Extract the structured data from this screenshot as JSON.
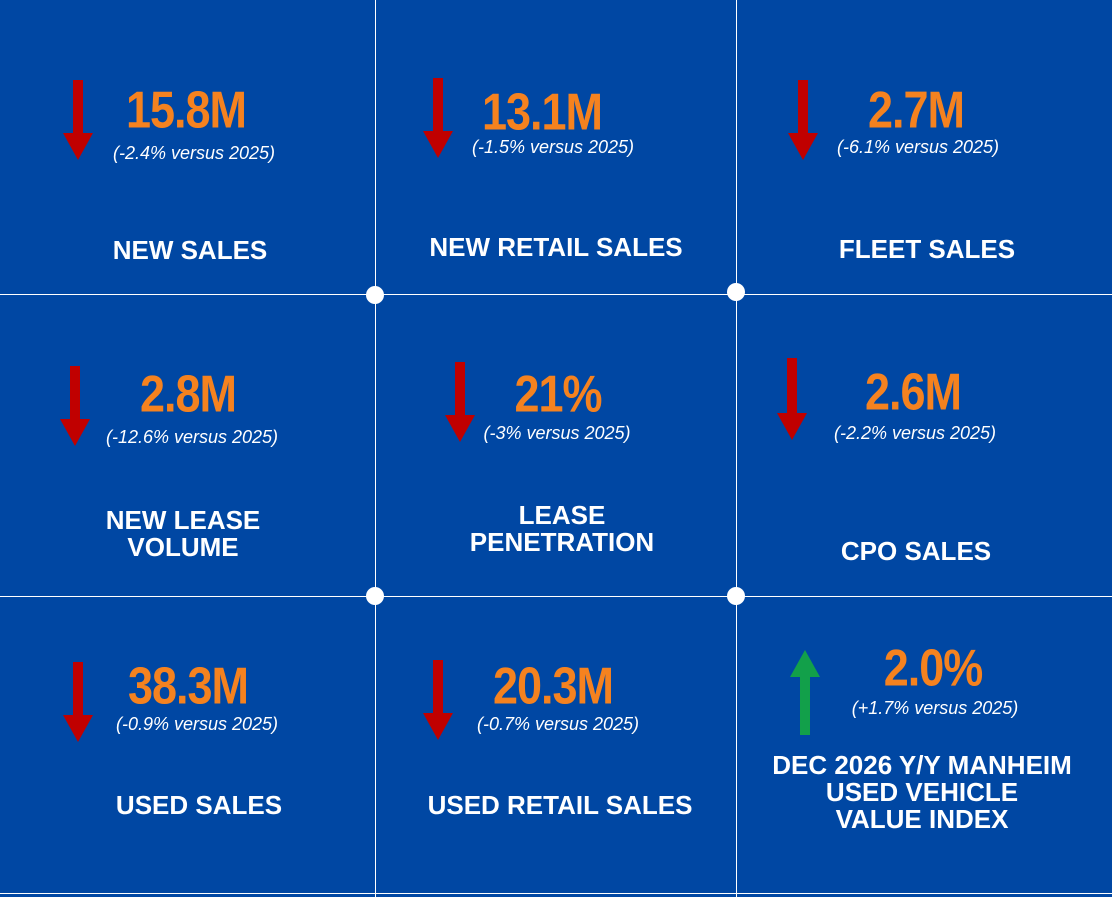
{
  "colors": {
    "background": "#0047a3",
    "value": "#f5821f",
    "down_arrow": "#c00000",
    "up_arrow": "#12a04a",
    "text": "#ffffff"
  },
  "tiles": [
    {
      "value": "15.8M",
      "change": "(-2.4% versus 2025)",
      "label": "NEW SALES",
      "direction": "down",
      "icon": "arrow-down-icon"
    },
    {
      "value": "13.1M",
      "change": "(-1.5% versus 2025)",
      "label": "NEW RETAIL SALES",
      "direction": "down",
      "icon": "arrow-down-icon"
    },
    {
      "value": "2.7M",
      "change": "(-6.1% versus 2025)",
      "label": "FLEET SALES",
      "direction": "down",
      "icon": "arrow-down-icon"
    },
    {
      "value": "2.8M",
      "change": "(-12.6% versus 2025)",
      "label": "NEW LEASE\nVOLUME",
      "direction": "down",
      "icon": "arrow-down-icon"
    },
    {
      "value": "21%",
      "change": "(-3% versus 2025)",
      "label": "LEASE\nPENETRATION",
      "direction": "down",
      "icon": "arrow-down-icon"
    },
    {
      "value": "2.6M",
      "change": "(-2.2% versus 2025)",
      "label": "CPO SALES",
      "direction": "down",
      "icon": "arrow-down-icon"
    },
    {
      "value": "38.3M",
      "change": "(-0.9% versus 2025)",
      "label": "USED SALES",
      "direction": "down",
      "icon": "arrow-down-icon"
    },
    {
      "value": "20.3M",
      "change": "(-0.7% versus 2025)",
      "label": "USED RETAIL SALES",
      "direction": "down",
      "icon": "arrow-down-icon"
    },
    {
      "value": "2.0%",
      "change": "(+1.7% versus 2025)",
      "label": "DEC 2026 Y/Y MANHEIM\nUSED VEHICLE\nVALUE INDEX",
      "direction": "up",
      "icon": "arrow-up-icon"
    }
  ]
}
